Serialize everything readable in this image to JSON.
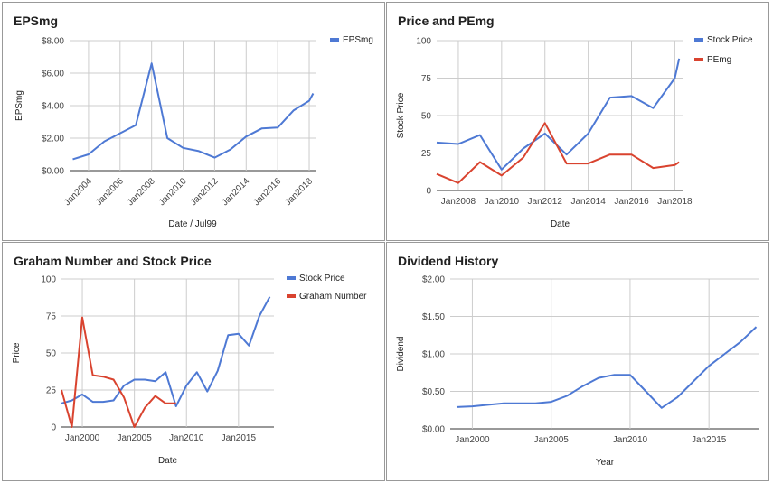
{
  "chart_data": [
    {
      "type": "line",
      "title": "EPSmg",
      "xlabel": "Date / Jul99",
      "ylabel": "EPSmg",
      "ylim": [
        0,
        8
      ],
      "xlim": [
        2002.8,
        2018.4
      ],
      "y_ticks": [
        0,
        2,
        4,
        6,
        8
      ],
      "y_tick_labels": [
        "$0.00",
        "$2.00",
        "$4.00",
        "$6.00",
        "$8.00"
      ],
      "x_ticks": [
        2004,
        2006,
        2008,
        2010,
        2012,
        2014,
        2016,
        2018
      ],
      "x_tick_labels": [
        "Jan2004",
        "Jan2006",
        "Jan2008",
        "Jan2010",
        "Jan2012",
        "Jan2014",
        "Jan2016",
        "Jan2018"
      ],
      "x_rotated": true,
      "grid": true,
      "legend_position": "top-right",
      "series": [
        {
          "name": "EPSmg",
          "color": "#4e79d4",
          "x": [
            2003,
            2004,
            2005,
            2006,
            2007,
            2008,
            2009,
            2010,
            2011,
            2012,
            2013,
            2014,
            2015,
            2016,
            2017,
            2018,
            2018.25
          ],
          "y": [
            0.7,
            1.0,
            1.8,
            2.3,
            2.8,
            6.6,
            2.0,
            1.4,
            1.2,
            0.8,
            1.3,
            2.1,
            2.6,
            2.65,
            3.7,
            4.3,
            4.75
          ]
        }
      ]
    },
    {
      "type": "line",
      "title": "Price and PEmg",
      "xlabel": "Date",
      "ylabel": "Stock Price",
      "ylim": [
        0,
        100
      ],
      "xlim": [
        2007,
        2018.4
      ],
      "y_ticks": [
        0,
        25,
        50,
        75,
        100
      ],
      "y_tick_labels": [
        "0",
        "25",
        "50",
        "75",
        "100"
      ],
      "x_ticks": [
        2008,
        2010,
        2012,
        2014,
        2016,
        2018
      ],
      "x_tick_labels": [
        "Jan2008",
        "Jan2010",
        "Jan2012",
        "Jan2014",
        "Jan2016",
        "Jan2018"
      ],
      "x_rotated": false,
      "grid": true,
      "legend_position": "top-right",
      "series": [
        {
          "name": "Stock Price",
          "color": "#4e79d4",
          "x": [
            2007,
            2008,
            2009,
            2010,
            2011,
            2012,
            2013,
            2014,
            2015,
            2016,
            2017,
            2018,
            2018.2
          ],
          "y": [
            32,
            31,
            37,
            14,
            28,
            38,
            24,
            38,
            62,
            63,
            55,
            75,
            88
          ]
        },
        {
          "name": "PEmg",
          "color": "#d9432f",
          "x": [
            2007,
            2008,
            2009,
            2010,
            2011,
            2012,
            2013,
            2014,
            2015,
            2016,
            2017,
            2018,
            2018.2
          ],
          "y": [
            11,
            5,
            19,
            10,
            22,
            45,
            18,
            18,
            24,
            24,
            15,
            17,
            19
          ]
        }
      ]
    },
    {
      "type": "line",
      "title": "Graham Number and Stock Price",
      "xlabel": "Date",
      "ylabel": "Price",
      "ylim": [
        0,
        100
      ],
      "xlim": [
        1998,
        2018.4
      ],
      "y_ticks": [
        0,
        25,
        50,
        75,
        100
      ],
      "y_tick_labels": [
        "0",
        "25",
        "50",
        "75",
        "100"
      ],
      "x_ticks": [
        2000,
        2005,
        2010,
        2015
      ],
      "x_tick_labels": [
        "Jan2000",
        "Jan2005",
        "Jan2010",
        "Jan2015"
      ],
      "x_rotated": false,
      "grid": true,
      "legend_position": "top-right",
      "series": [
        {
          "name": "Stock Price",
          "color": "#4e79d4",
          "x": [
            1998,
            1999,
            2000,
            2001,
            2002,
            2003,
            2004,
            2005,
            2006,
            2007,
            2008,
            2009,
            2010,
            2011,
            2012,
            2013,
            2014,
            2015,
            2016,
            2017,
            2018
          ],
          "y": [
            16,
            18,
            22,
            17,
            17,
            18,
            28,
            32,
            32,
            31,
            37,
            14,
            28,
            37,
            24,
            38,
            62,
            63,
            55,
            75,
            88
          ]
        },
        {
          "name": "Graham Number",
          "color": "#d9432f",
          "x": [
            1998,
            1999,
            2000,
            2001,
            2002,
            2003,
            2004,
            2005,
            2006,
            2007,
            2008,
            2009
          ],
          "y": [
            25,
            0,
            74,
            35,
            34,
            32,
            20,
            0,
            13,
            21,
            16,
            16
          ]
        }
      ]
    },
    {
      "type": "line",
      "title": "Dividend History",
      "xlabel": "Year",
      "ylabel": "Dividend",
      "ylim": [
        0,
        2
      ],
      "xlim": [
        1998.6,
        2018.2
      ],
      "y_ticks": [
        0,
        0.5,
        1,
        1.5,
        2
      ],
      "y_tick_labels": [
        "$0.00",
        "$0.50",
        "$1.00",
        "$1.50",
        "$2.00"
      ],
      "x_ticks": [
        2000,
        2005,
        2010,
        2015
      ],
      "x_tick_labels": [
        "Jan2000",
        "Jan2005",
        "Jan2010",
        "Jan2015"
      ],
      "x_rotated": false,
      "grid": true,
      "legend_position": "none",
      "series": [
        {
          "name": "",
          "color": "#4e79d4",
          "x": [
            1999,
            2000,
            2001,
            2002,
            2003,
            2004,
            2005,
            2006,
            2007,
            2008,
            2009,
            2010,
            2011,
            2012,
            2013,
            2014,
            2015,
            2016,
            2017,
            2018
          ],
          "y": [
            0.29,
            0.3,
            0.32,
            0.34,
            0.34,
            0.34,
            0.36,
            0.44,
            0.57,
            0.68,
            0.72,
            0.72,
            0.5,
            0.28,
            0.42,
            0.63,
            0.84,
            1.0,
            1.16,
            1.36
          ]
        }
      ]
    }
  ]
}
